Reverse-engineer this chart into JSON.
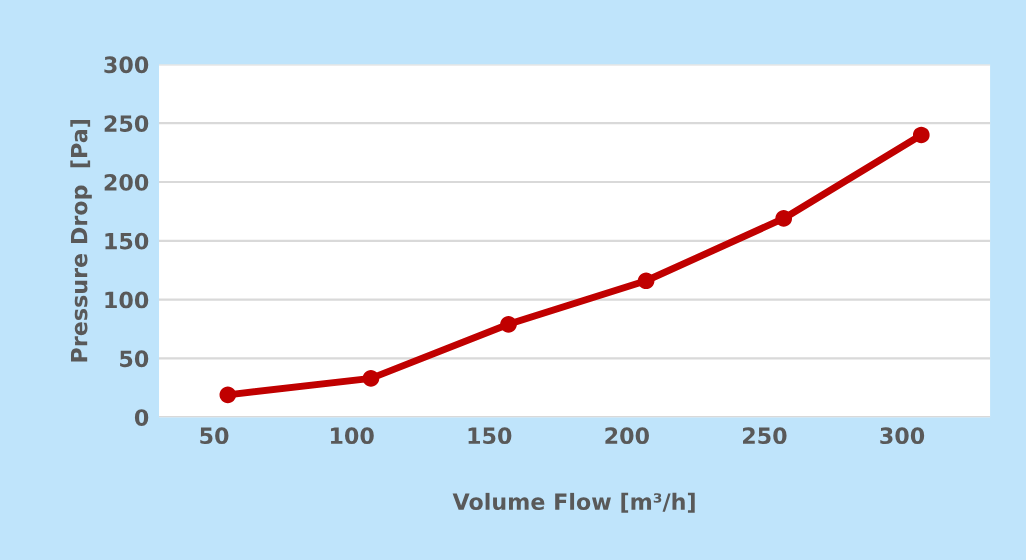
{
  "chart_data": {
    "type": "line",
    "xlabel": "Volume Flow [m³/h]",
    "ylabel": "Pressure Drop  [Pa]",
    "x": [
      55,
      107,
      157,
      207,
      257,
      307
    ],
    "series": [
      {
        "color": "#c00000",
        "values": [
          19,
          33,
          79,
          116,
          169,
          240
        ]
      }
    ],
    "xlim": [
      30,
      332
    ],
    "xticks": [
      50,
      100,
      150,
      200,
      250,
      300
    ],
    "ylim": [
      0,
      300
    ],
    "yticks": [
      0,
      50,
      100,
      150,
      200,
      250,
      300
    ],
    "grid": "y",
    "marker": "circle",
    "line_style": "solid"
  }
}
